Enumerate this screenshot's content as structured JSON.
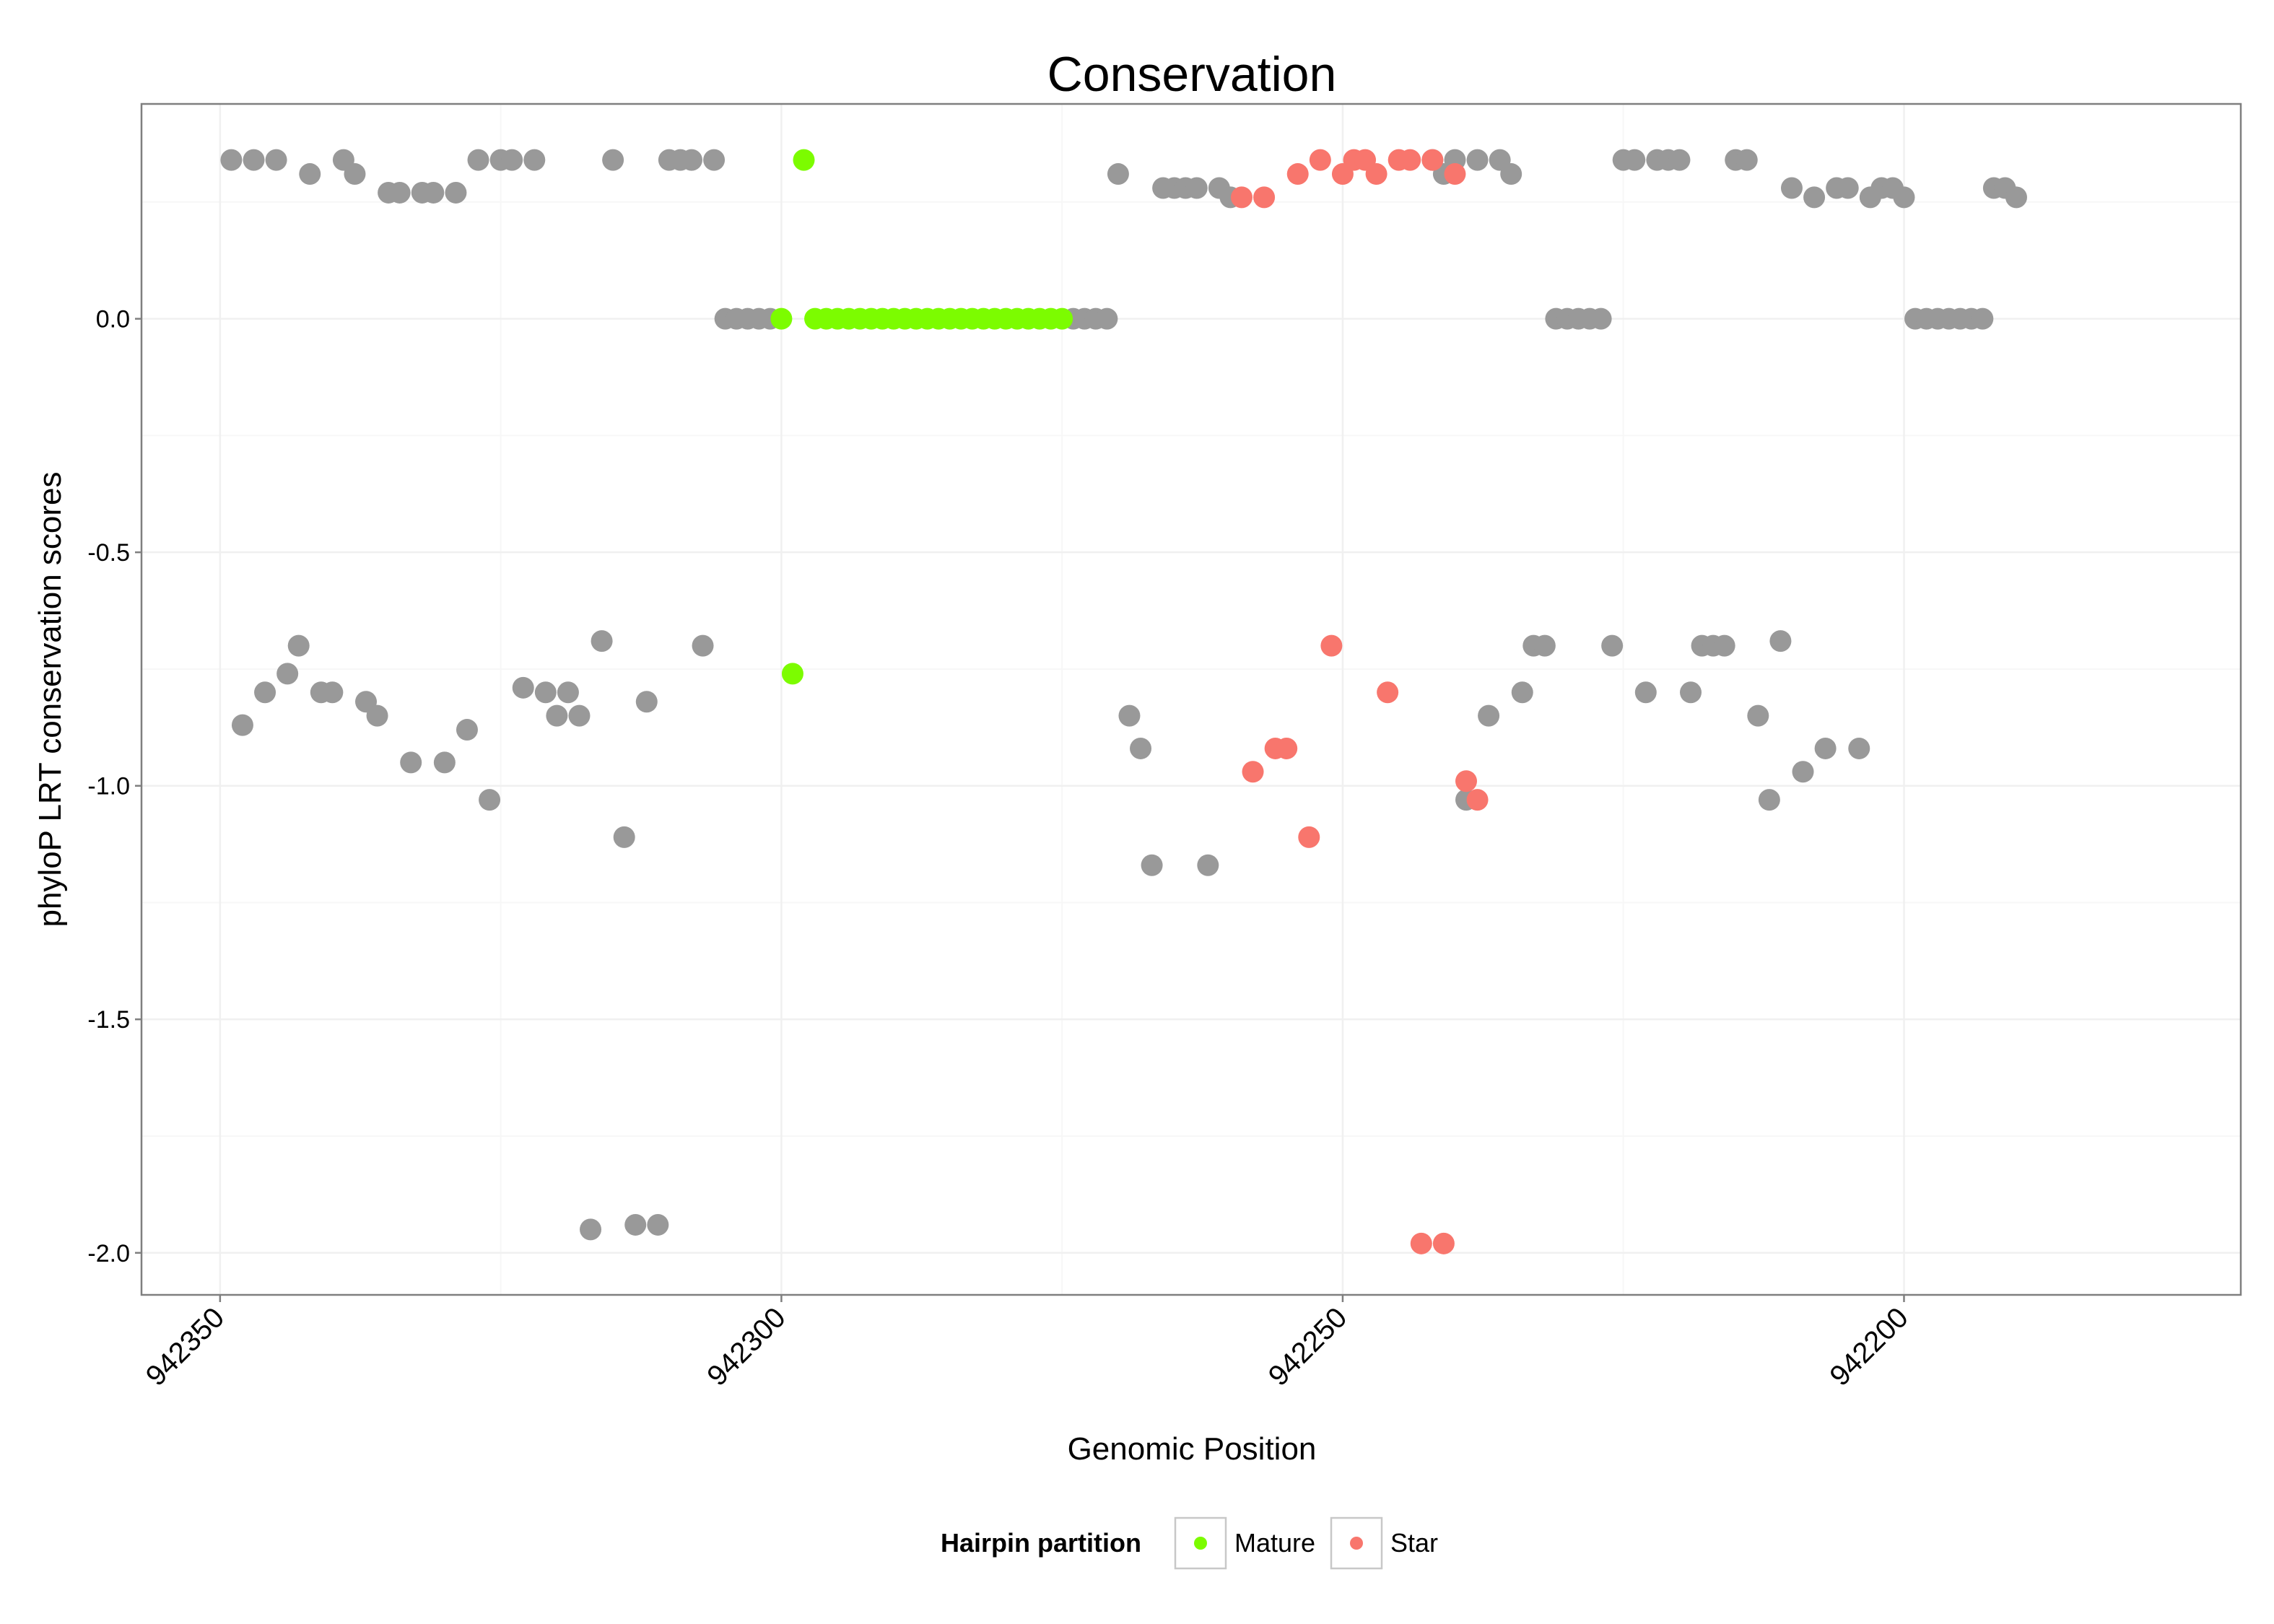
{
  "chart_data": {
    "type": "scatter",
    "title": "Conservation",
    "xlabel": "Genomic Position",
    "ylabel": "phyloP LRT conservation scores",
    "xlim": [
      942357,
      942170
    ],
    "x_reversed": true,
    "ylim": [
      -2.09,
      0.46
    ],
    "x_ticks": [
      942350,
      942300,
      942250,
      942200
    ],
    "x_tick_labels": [
      "942350",
      "942300",
      "942250",
      "942200"
    ],
    "y_ticks": [
      0.0,
      -0.5,
      -1.0,
      -1.5,
      -2.0
    ],
    "y_tick_labels": [
      "0.0",
      "-0.5",
      "-1.0",
      "-1.5",
      "-2.0"
    ],
    "grid": true,
    "legend": {
      "title": "Hairpin partition",
      "position": "bottom",
      "entries": [
        {
          "label": "Mature",
          "color": "#7CFC00"
        },
        {
          "label": "Star",
          "color": "#F8766D"
        }
      ]
    },
    "colors": {
      "Other": "#999999",
      "Mature": "#7CFC00",
      "Star": "#F8766D"
    },
    "series": [
      {
        "name": "Other",
        "points": [
          [
            942349,
            0.34
          ],
          [
            942348,
            -0.87
          ],
          [
            942347,
            0.34
          ],
          [
            942346,
            -0.8
          ],
          [
            942345,
            0.34
          ],
          [
            942344,
            -0.76
          ],
          [
            942343,
            -0.7
          ],
          [
            942342,
            0.31
          ],
          [
            942341,
            -0.8
          ],
          [
            942340,
            -0.8
          ],
          [
            942339,
            0.34
          ],
          [
            942338,
            0.31
          ],
          [
            942337,
            -0.82
          ],
          [
            942336,
            -0.85
          ],
          [
            942335,
            0.27
          ],
          [
            942334,
            0.27
          ],
          [
            942333,
            -0.95
          ],
          [
            942332,
            0.27
          ],
          [
            942331,
            0.27
          ],
          [
            942330,
            -0.95
          ],
          [
            942329,
            0.27
          ],
          [
            942328,
            -0.88
          ],
          [
            942327,
            0.34
          ],
          [
            942326,
            -1.03
          ],
          [
            942325,
            0.34
          ],
          [
            942324,
            0.34
          ],
          [
            942323,
            -0.79
          ],
          [
            942322,
            0.34
          ],
          [
            942321,
            -0.8
          ],
          [
            942320,
            -0.85
          ],
          [
            942319,
            -0.8
          ],
          [
            942318,
            -0.85
          ],
          [
            942317,
            -1.95
          ],
          [
            942316,
            -0.69
          ],
          [
            942315,
            0.34
          ],
          [
            942314,
            -1.11
          ],
          [
            942313,
            -1.94
          ],
          [
            942312,
            -0.82
          ],
          [
            942311,
            -1.94
          ],
          [
            942310,
            0.34
          ],
          [
            942309,
            0.34
          ],
          [
            942308,
            0.34
          ],
          [
            942307,
            -0.7
          ],
          [
            942306,
            0.34
          ],
          [
            942305,
            0.0
          ],
          [
            942304,
            0.0
          ],
          [
            942303,
            0.0
          ],
          [
            942302,
            0.0
          ],
          [
            942301,
            0.0
          ],
          [
            942274,
            0.0
          ],
          [
            942273,
            0.0
          ],
          [
            942272,
            0.0
          ],
          [
            942271,
            0.0
          ],
          [
            942270,
            0.31
          ],
          [
            942269,
            -0.85
          ],
          [
            942268,
            -0.92
          ],
          [
            942267,
            -1.17
          ],
          [
            942266,
            0.28
          ],
          [
            942265,
            0.28
          ],
          [
            942264,
            0.28
          ],
          [
            942263,
            0.28
          ],
          [
            942262,
            -1.17
          ],
          [
            942261,
            0.28
          ],
          [
            942260,
            0.26
          ],
          [
            942242,
            0.34
          ],
          [
            942241,
            0.31
          ],
          [
            942240,
            0.34
          ],
          [
            942239,
            -1.03
          ],
          [
            942238,
            0.34
          ],
          [
            942237,
            -0.85
          ],
          [
            942236,
            0.34
          ],
          [
            942235,
            0.31
          ],
          [
            942234,
            -0.8
          ],
          [
            942233,
            -0.7
          ],
          [
            942232,
            -0.7
          ],
          [
            942231,
            0.0
          ],
          [
            942230,
            0.0
          ],
          [
            942229,
            0.0
          ],
          [
            942228,
            0.0
          ],
          [
            942227,
            0.0
          ],
          [
            942226,
            -0.7
          ],
          [
            942225,
            0.34
          ],
          [
            942224,
            0.34
          ],
          [
            942223,
            -0.8
          ],
          [
            942222,
            0.34
          ],
          [
            942221,
            0.34
          ],
          [
            942220,
            0.34
          ],
          [
            942219,
            -0.8
          ],
          [
            942218,
            -0.7
          ],
          [
            942217,
            -0.7
          ],
          [
            942216,
            -0.7
          ],
          [
            942215,
            0.34
          ],
          [
            942214,
            0.34
          ],
          [
            942213,
            -0.85
          ],
          [
            942212,
            -1.03
          ],
          [
            942211,
            -0.69
          ],
          [
            942210,
            0.28
          ],
          [
            942209,
            -0.97
          ],
          [
            942208,
            0.26
          ],
          [
            942207,
            -0.92
          ],
          [
            942206,
            0.28
          ],
          [
            942205,
            0.28
          ],
          [
            942204,
            -0.92
          ],
          [
            942203,
            0.26
          ],
          [
            942202,
            0.28
          ],
          [
            942201,
            0.28
          ],
          [
            942200,
            0.26
          ],
          [
            942199,
            0.0
          ],
          [
            942198,
            0.0
          ],
          [
            942197,
            0.0
          ],
          [
            942196,
            0.0
          ],
          [
            942195,
            0.0
          ],
          [
            942194,
            0.0
          ],
          [
            942193,
            0.0
          ],
          [
            942192,
            0.28
          ],
          [
            942191,
            0.28
          ],
          [
            942190,
            0.26
          ]
        ]
      },
      {
        "name": "Mature",
        "points": [
          [
            942300,
            0.0
          ],
          [
            942299,
            -0.76
          ],
          [
            942298,
            0.34
          ],
          [
            942297,
            0.0
          ],
          [
            942296,
            0.0
          ],
          [
            942295,
            0.0
          ],
          [
            942294,
            0.0
          ],
          [
            942293,
            0.0
          ],
          [
            942292,
            0.0
          ],
          [
            942291,
            0.0
          ],
          [
            942290,
            0.0
          ],
          [
            942289,
            0.0
          ],
          [
            942288,
            0.0
          ],
          [
            942287,
            0.0
          ],
          [
            942286,
            0.0
          ],
          [
            942285,
            0.0
          ],
          [
            942284,
            0.0
          ],
          [
            942283,
            0.0
          ],
          [
            942282,
            0.0
          ],
          [
            942281,
            0.0
          ],
          [
            942280,
            0.0
          ],
          [
            942279,
            0.0
          ],
          [
            942278,
            0.0
          ],
          [
            942277,
            0.0
          ],
          [
            942276,
            0.0
          ],
          [
            942275,
            0.0
          ]
        ]
      },
      {
        "name": "Star",
        "points": [
          [
            942259,
            0.26
          ],
          [
            942258,
            -0.97
          ],
          [
            942257,
            0.26
          ],
          [
            942256,
            -0.92
          ],
          [
            942255,
            -0.92
          ],
          [
            942254,
            0.31
          ],
          [
            942253,
            -1.11
          ],
          [
            942252,
            0.34
          ],
          [
            942251,
            -0.7
          ],
          [
            942250,
            0.31
          ],
          [
            942249,
            0.34
          ],
          [
            942248,
            0.34
          ],
          [
            942247,
            0.31
          ],
          [
            942246,
            -0.8
          ],
          [
            942245,
            0.34
          ],
          [
            942244,
            0.34
          ],
          [
            942243,
            -1.98
          ],
          [
            942242.0,
            0.34
          ],
          [
            942241.0,
            -1.98
          ],
          [
            942240.0,
            0.31
          ],
          [
            942239.0,
            -0.99
          ],
          [
            942238.0,
            -1.03
          ]
        ]
      }
    ]
  }
}
